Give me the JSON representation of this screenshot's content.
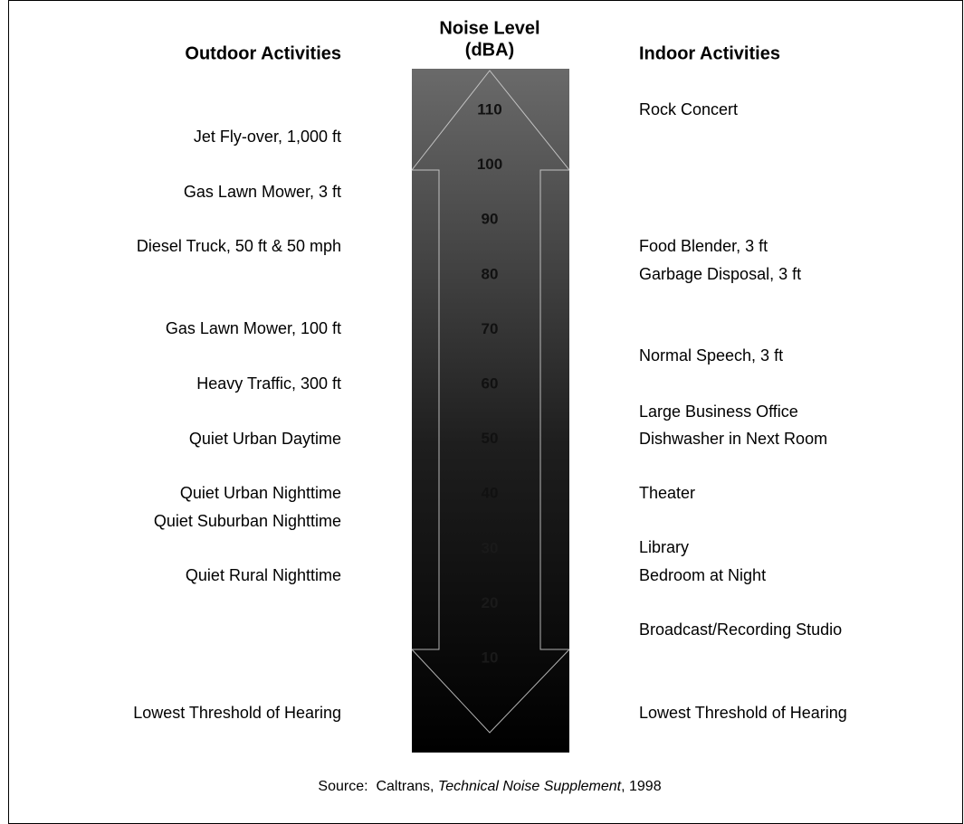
{
  "header": {
    "outdoor": "Outdoor Activities",
    "level_line1": "Noise Level",
    "level_line2": "(dBA)",
    "indoor": "Indoor Activities"
  },
  "scale": [
    110,
    100,
    90,
    80,
    70,
    60,
    50,
    40,
    30,
    20,
    10
  ],
  "outdoor": [
    "Jet Fly-over, 1,000 ft",
    "Gas Lawn Mower, 3 ft",
    "Diesel Truck, 50 ft & 50 mph",
    "Gas Lawn Mower, 100 ft",
    "Heavy Traffic, 300 ft",
    "Quiet Urban Daytime",
    "Quiet Urban Nighttime",
    "Quiet Suburban Nighttime",
    "Quiet Rural Nighttime",
    "Lowest Threshold of Hearing"
  ],
  "indoor": [
    "Rock Concert",
    "Food Blender, 3 ft",
    "Garbage Disposal, 3 ft",
    "Normal Speech, 3 ft",
    "Large Business Office",
    "Dishwasher in Next Room",
    "Theater",
    "Library",
    "Bedroom at Night",
    "Broadcast/Recording Studio",
    "Lowest Threshold of Hearing"
  ],
  "source": {
    "prefix": "Source:  Caltrans, ",
    "title": "Technical Noise Supplement",
    "suffix": ", 1998"
  }
}
